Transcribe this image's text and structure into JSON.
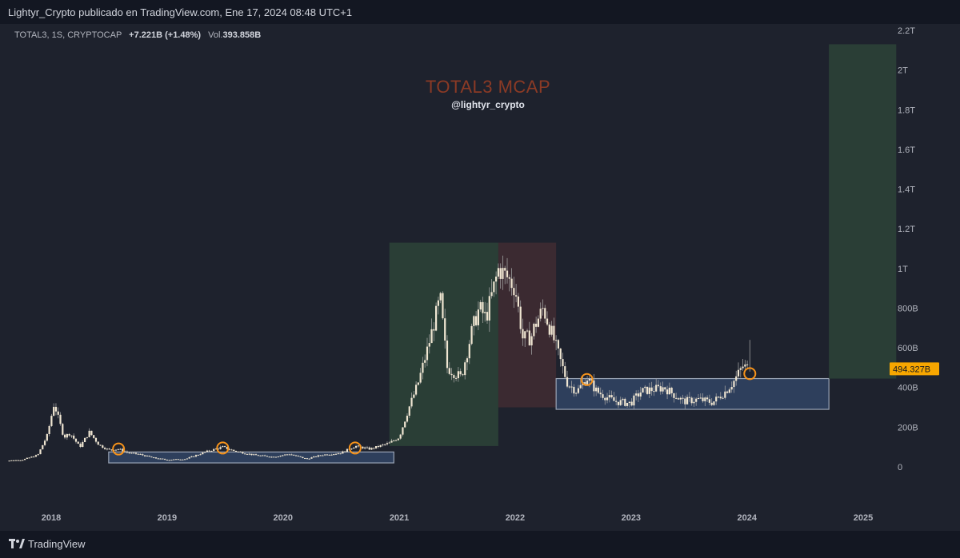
{
  "header": {
    "published_text": "Lightyr_Crypto publicado en TradingView.com, Ene 17, 2024 08:48 UTC+1"
  },
  "legend": {
    "symbol": "TOTAL3, 1S, CRYPTOCAP",
    "change": "+7.221B (+1.48%)",
    "volume_label": "Vol.",
    "volume_value": "393.858B"
  },
  "watermark": {
    "title": "TOTAL3 MCAP",
    "handle": "@lightyr_crypto"
  },
  "footer": {
    "brand": "TradingView"
  },
  "colors": {
    "background": "#1e222d",
    "candle": "#f0e6d2",
    "wick": "#9e9e9e",
    "green_zone": "#2a3e36",
    "red_zone": "#3b2a31",
    "blue_zone": "#2e3f5c",
    "circle": "#f7931a",
    "price_label": "#f7a600"
  },
  "chart_data": {
    "type": "candlestick",
    "title": "TOTAL3 MCAP",
    "symbol": "TOTAL3",
    "interval": "1S",
    "y_unit": "USD (B)",
    "y_scale": "linear",
    "ylim": [
      -50,
      2200
    ],
    "y_ticks": [
      {
        "value": 0,
        "label": "0"
      },
      {
        "value": 200,
        "label": "200B"
      },
      {
        "value": 400,
        "label": "400B"
      },
      {
        "value": 600,
        "label": "600B"
      },
      {
        "value": 800,
        "label": "800B"
      },
      {
        "value": 1000,
        "label": "1T"
      },
      {
        "value": 1200,
        "label": "1.2T"
      },
      {
        "value": 1400,
        "label": "1.4T"
      },
      {
        "value": 1600,
        "label": "1.6T"
      },
      {
        "value": 1800,
        "label": "1.8T"
      },
      {
        "value": 2000,
        "label": "2T"
      },
      {
        "value": 2200,
        "label": "2.2T"
      }
    ],
    "x_range": [
      "2017-08-01",
      "2025-06-01"
    ],
    "x_ticks": [
      {
        "value": "2018-01-01",
        "label": "2018"
      },
      {
        "value": "2019-01-01",
        "label": "2019"
      },
      {
        "value": "2020-01-01",
        "label": "2020"
      },
      {
        "value": "2021-01-01",
        "label": "2021"
      },
      {
        "value": "2022-01-01",
        "label": "2022"
      },
      {
        "value": "2023-01-01",
        "label": "2023"
      },
      {
        "value": "2024-01-01",
        "label": "2024"
      },
      {
        "value": "2025-01-01",
        "label": "2025"
      }
    ],
    "last_price": {
      "value": 494.327,
      "label": "494.327B"
    },
    "series": [
      {
        "points": [
          [
            "2017-08-01",
            30
          ],
          [
            "2017-10-01",
            35
          ],
          [
            "2017-11-20",
            60
          ],
          [
            "2017-12-20",
            160
          ],
          [
            "2018-01-10",
            320
          ],
          [
            "2018-02-10",
            150
          ],
          [
            "2018-03-01",
            170
          ],
          [
            "2018-04-01",
            100
          ],
          [
            "2018-05-01",
            175
          ],
          [
            "2018-06-01",
            110
          ],
          [
            "2018-07-01",
            85
          ],
          [
            "2018-08-01",
            90
          ],
          [
            "2018-09-01",
            70
          ],
          [
            "2018-10-01",
            65
          ],
          [
            "2018-11-20",
            45
          ],
          [
            "2019-01-01",
            35
          ],
          [
            "2019-03-01",
            40
          ],
          [
            "2019-05-01",
            75
          ],
          [
            "2019-06-25",
            100
          ],
          [
            "2019-08-01",
            80
          ],
          [
            "2019-10-01",
            60
          ],
          [
            "2019-12-01",
            50
          ],
          [
            "2020-01-20",
            65
          ],
          [
            "2020-03-15",
            40
          ],
          [
            "2020-05-01",
            60
          ],
          [
            "2020-07-01",
            70
          ],
          [
            "2020-08-15",
            105
          ],
          [
            "2020-10-01",
            90
          ],
          [
            "2020-12-01",
            120
          ],
          [
            "2021-01-01",
            150
          ],
          [
            "2021-02-01",
            300
          ],
          [
            "2021-03-01",
            420
          ],
          [
            "2021-04-01",
            600
          ],
          [
            "2021-05-10",
            850
          ],
          [
            "2021-06-01",
            500
          ],
          [
            "2021-07-15",
            450
          ],
          [
            "2021-08-20",
            700
          ],
          [
            "2021-09-10",
            800
          ],
          [
            "2021-10-01",
            750
          ],
          [
            "2021-11-10",
            1000
          ],
          [
            "2021-12-10",
            950
          ],
          [
            "2022-01-01",
            900
          ],
          [
            "2022-01-25",
            650
          ],
          [
            "2022-02-20",
            650
          ],
          [
            "2022-03-01",
            700
          ],
          [
            "2022-03-30",
            800
          ],
          [
            "2022-05-01",
            650
          ],
          [
            "2022-06-15",
            420
          ],
          [
            "2022-07-15",
            380
          ],
          [
            "2022-08-15",
            450
          ],
          [
            "2022-09-15",
            380
          ],
          [
            "2022-11-10",
            330
          ],
          [
            "2022-12-30",
            320
          ],
          [
            "2023-02-01",
            380
          ],
          [
            "2023-04-15",
            400
          ],
          [
            "2023-06-15",
            330
          ],
          [
            "2023-08-01",
            340
          ],
          [
            "2023-09-15",
            325
          ],
          [
            "2023-10-25",
            380
          ],
          [
            "2023-11-20",
            430
          ],
          [
            "2023-12-20",
            510
          ],
          [
            "2024-01-05",
            494
          ]
        ]
      }
    ],
    "zones": [
      {
        "kind": "rectangle",
        "color": "green",
        "x": [
          "2020-12-01",
          "2021-11-09"
        ],
        "y": [
          105,
          1130
        ]
      },
      {
        "kind": "rectangle",
        "color": "red",
        "x": [
          "2021-11-09",
          "2022-05-10"
        ],
        "y": [
          300,
          1130
        ]
      },
      {
        "kind": "rectangle",
        "color": "blue",
        "x": [
          "2018-07-01",
          "2020-12-15"
        ],
        "y": [
          20,
          75
        ]
      },
      {
        "kind": "rectangle",
        "color": "blue",
        "x": [
          "2022-05-10",
          "2024-09-15"
        ],
        "y": [
          290,
          445
        ]
      },
      {
        "kind": "rectangle",
        "color": "green",
        "x": [
          "2024-09-15",
          "2025-04-15"
        ],
        "y": [
          445,
          2130
        ]
      }
    ],
    "markers": [
      {
        "kind": "circle",
        "x": "2018-08-01",
        "y": 90
      },
      {
        "kind": "circle",
        "x": "2019-06-25",
        "y": 95
      },
      {
        "kind": "circle",
        "x": "2020-08-15",
        "y": 95
      },
      {
        "kind": "circle",
        "x": "2022-08-15",
        "y": 440
      },
      {
        "kind": "circle",
        "x": "2024-01-10",
        "y": 470
      }
    ]
  }
}
